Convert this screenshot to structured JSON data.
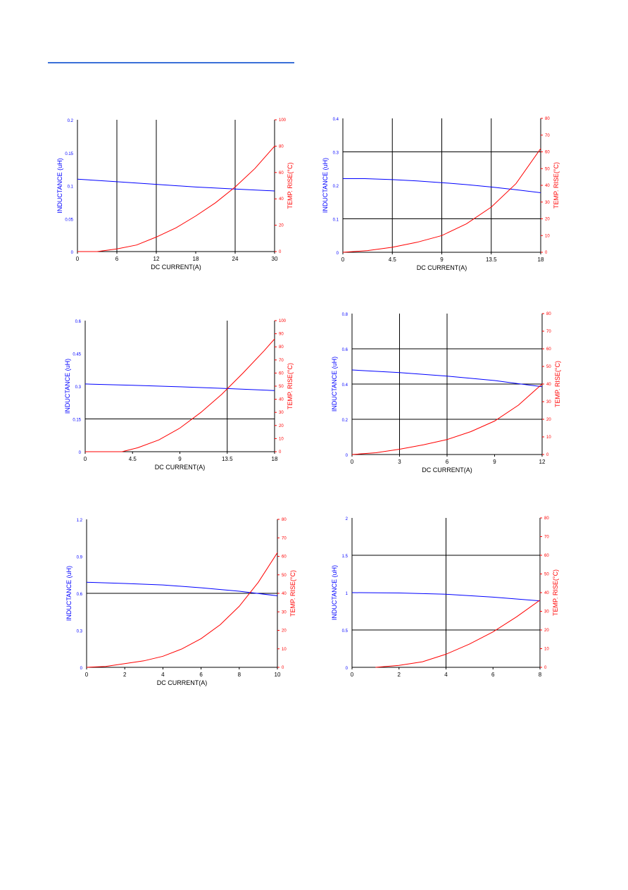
{
  "colors": {
    "header_rule": "#3a6fd8",
    "inductance": "#0000ff",
    "temp": "#ff0000",
    "grid": "#000000",
    "text": "#000000"
  },
  "chart_data": [
    {
      "type": "line",
      "xlabel": "DC CURRENT(A)",
      "ylabel_left": "INDUCTANCE (uH)",
      "ylabel_right": "TEMP. RISE(°C)",
      "x_ticks": [
        0,
        6,
        12,
        18,
        24,
        30
      ],
      "x_tick_labels": [
        "0",
        "6",
        "12",
        "18",
        "24",
        "30"
      ],
      "xlim": [
        0,
        30
      ],
      "y_left_ticks": [
        0,
        0.05,
        0.1,
        0.15,
        0.2
      ],
      "y_left_tick_labels": [
        "0",
        "0.05",
        "0.1",
        "0.15",
        "0.2"
      ],
      "y_left_lim": [
        0,
        0.2
      ],
      "y_right_ticks": [
        0,
        20,
        40,
        60,
        80,
        100
      ],
      "y_right_tick_labels": [
        "0",
        "20",
        "40",
        "60",
        "80",
        "100"
      ],
      "y_right_lim": [
        0,
        100
      ],
      "grid_x": [
        6,
        12,
        24
      ],
      "grid_y": [],
      "series": [
        {
          "axis": "left",
          "x": [
            0,
            6,
            12,
            18,
            24,
            30
          ],
          "y": [
            0.11,
            0.106,
            0.102,
            0.098,
            0.095,
            0.092
          ]
        },
        {
          "axis": "right",
          "x": [
            0,
            3,
            6,
            9,
            12,
            15,
            18,
            21,
            24,
            27,
            30
          ],
          "y": [
            0,
            0,
            2,
            5,
            11,
            18,
            27,
            37,
            49,
            63,
            80
          ]
        }
      ]
    },
    {
      "type": "line",
      "xlabel": "DC CURRENT(A)",
      "ylabel_left": "INDUCTANCE (uH)",
      "ylabel_right": "TEMP. RISE(°C)",
      "x_ticks": [
        0,
        4.5,
        9,
        13.5,
        18
      ],
      "x_tick_labels": [
        "0",
        "4.5",
        "9",
        "13.5",
        "18"
      ],
      "xlim": [
        0,
        18
      ],
      "y_left_ticks": [
        0,
        0.1,
        0.2,
        0.3,
        0.4
      ],
      "y_left_tick_labels": [
        "0",
        "0.1",
        "0.2",
        "0.3",
        "0.4"
      ],
      "y_left_lim": [
        0,
        0.4
      ],
      "y_right_ticks": [
        0,
        10,
        20,
        30,
        40,
        50,
        60,
        70,
        80
      ],
      "y_right_tick_labels": [
        "0",
        "10",
        "20",
        "30",
        "40",
        "50",
        "60",
        "70",
        "80"
      ],
      "y_right_lim": [
        0,
        80
      ],
      "grid_x": [
        4.5,
        9,
        13.5
      ],
      "grid_y": [
        0.1,
        0.3
      ],
      "series": [
        {
          "axis": "left",
          "x": [
            0,
            2,
            4.5,
            6.75,
            9,
            11.25,
            13.5,
            15.75,
            18
          ],
          "y": [
            0.22,
            0.22,
            0.217,
            0.213,
            0.208,
            0.202,
            0.195,
            0.187,
            0.178
          ]
        },
        {
          "axis": "right",
          "x": [
            0,
            2.25,
            4.5,
            6.75,
            9,
            11.25,
            13.5,
            15.75,
            18
          ],
          "y": [
            0,
            1,
            3,
            6,
            10,
            17,
            27,
            41,
            62
          ]
        }
      ]
    },
    {
      "type": "line",
      "xlabel": "DC CURRENT(A)",
      "ylabel_left": "INDUCTANCE (uH)",
      "ylabel_right": "TEMP. RISE(°C)",
      "x_ticks": [
        0,
        4.5,
        9,
        13.5,
        18
      ],
      "x_tick_labels": [
        "0",
        "4.5",
        "9",
        "13.5",
        "18"
      ],
      "xlim": [
        0,
        18
      ],
      "y_left_ticks": [
        0,
        0.15,
        0.3,
        0.45,
        0.6
      ],
      "y_left_tick_labels": [
        "0",
        "0.15",
        "0.3",
        "0.45",
        "0.6"
      ],
      "y_left_lim": [
        0,
        0.6
      ],
      "y_right_ticks": [
        0,
        10,
        20,
        30,
        40,
        50,
        60,
        70,
        80,
        90,
        100
      ],
      "y_right_tick_labels": [
        "0",
        "10",
        "20",
        "30",
        "40",
        "50",
        "60",
        "70",
        "80",
        "90",
        "100"
      ],
      "y_right_lim": [
        0,
        100
      ],
      "grid_x": [
        13.5
      ],
      "grid_y": [
        0.15
      ],
      "series": [
        {
          "axis": "left",
          "x": [
            0,
            4.5,
            9,
            13.5,
            18
          ],
          "y": [
            0.31,
            0.304,
            0.297,
            0.289,
            0.28
          ]
        },
        {
          "axis": "right",
          "x": [
            0,
            3.5,
            5,
            7,
            9,
            11,
            13,
            15,
            17,
            18
          ],
          "y": [
            0,
            0,
            3,
            9,
            18,
            30,
            44,
            60,
            77,
            86
          ]
        }
      ]
    },
    {
      "type": "line",
      "xlabel": "DC CURRENT(A)",
      "ylabel_left": "INDUCTANCE (uH)",
      "ylabel_right": "TEMP. RISE(°C)",
      "x_ticks": [
        0,
        3,
        6,
        9,
        12
      ],
      "x_tick_labels": [
        "0",
        "3",
        "6",
        "9",
        "12"
      ],
      "xlim": [
        0,
        12
      ],
      "y_left_ticks": [
        0,
        0.2,
        0.4,
        0.6,
        0.8
      ],
      "y_left_tick_labels": [
        "0",
        "0.2",
        "0.4",
        "0.6",
        "0.8"
      ],
      "y_left_lim": [
        0,
        0.8
      ],
      "y_right_ticks": [
        0,
        10,
        20,
        30,
        40,
        50,
        60,
        70,
        80
      ],
      "y_right_tick_labels": [
        "0",
        "10",
        "20",
        "30",
        "40",
        "50",
        "60",
        "70",
        "80"
      ],
      "y_right_lim": [
        0,
        80
      ],
      "grid_x": [
        3,
        6
      ],
      "grid_y": [
        0.2,
        0.4,
        0.6
      ],
      "series": [
        {
          "axis": "left",
          "x": [
            0,
            3,
            6,
            9,
            10.5,
            12
          ],
          "y": [
            0.48,
            0.465,
            0.445,
            0.42,
            0.402,
            0.385
          ]
        },
        {
          "axis": "right",
          "x": [
            0,
            1.5,
            3,
            4.5,
            6,
            7.5,
            9,
            10.5,
            12
          ],
          "y": [
            0,
            1,
            3,
            5.5,
            8.5,
            13,
            19,
            28,
            40
          ]
        }
      ]
    },
    {
      "type": "line",
      "xlabel": "DC CURRENT(A)",
      "ylabel_left": "INDUCTANCE (uH)",
      "ylabel_right": "TEMP. RISE(°C)",
      "x_ticks": [
        0,
        2,
        4,
        6,
        8,
        10
      ],
      "x_tick_labels": [
        "0",
        "2",
        "4",
        "6",
        "8",
        "10"
      ],
      "xlim": [
        0,
        10
      ],
      "y_left_ticks": [
        0,
        0.3,
        0.6,
        0.9,
        1.2
      ],
      "y_left_tick_labels": [
        "0",
        "0.3",
        "0.6",
        "0.9",
        "1.2"
      ],
      "y_left_lim": [
        0,
        1.2
      ],
      "y_right_ticks": [
        0,
        10,
        20,
        30,
        40,
        50,
        60,
        70,
        80
      ],
      "y_right_tick_labels": [
        "0",
        "10",
        "20",
        "30",
        "40",
        "50",
        "60",
        "70",
        "80"
      ],
      "y_right_lim": [
        0,
        80
      ],
      "grid_x": [],
      "grid_y": [
        0.6
      ],
      "series": [
        {
          "axis": "left",
          "x": [
            0,
            2,
            4,
            6,
            8,
            10
          ],
          "y": [
            0.69,
            0.68,
            0.668,
            0.645,
            0.617,
            0.58
          ]
        },
        {
          "axis": "right",
          "x": [
            0,
            1,
            2,
            3,
            4,
            5,
            6,
            7,
            8,
            9,
            10
          ],
          "y": [
            0,
            0.5,
            2,
            3.5,
            6,
            10,
            15.5,
            23,
            33,
            46,
            62
          ]
        }
      ]
    },
    {
      "type": "line",
      "xlabel": "",
      "ylabel_left": "INDUCTANCE (uH)",
      "ylabel_right": "TEMP. RISE(°C)",
      "x_ticks": [
        0,
        2,
        4,
        6,
        8
      ],
      "x_tick_labels": [
        "0",
        "2",
        "4",
        "6",
        "8"
      ],
      "xlim": [
        0,
        8
      ],
      "y_left_ticks": [
        0,
        0.5,
        1,
        1.5,
        2
      ],
      "y_left_tick_labels": [
        "0",
        "0.5",
        "1",
        "1.5",
        "2"
      ],
      "y_left_lim": [
        0,
        2
      ],
      "y_right_ticks": [
        0,
        10,
        20,
        30,
        40,
        50,
        60,
        70,
        80
      ],
      "y_right_tick_labels": [
        "0",
        "10",
        "20",
        "30",
        "40",
        "50",
        "60",
        "70",
        "80"
      ],
      "y_right_lim": [
        0,
        80
      ],
      "grid_x": [
        4
      ],
      "grid_y": [
        0.5,
        1.5
      ],
      "series": [
        {
          "axis": "left",
          "x": [
            0,
            2,
            4,
            6,
            8
          ],
          "y": [
            1.0,
            0.995,
            0.978,
            0.94,
            0.89
          ]
        },
        {
          "axis": "right",
          "x": [
            1,
            2,
            3,
            4,
            5,
            6,
            7,
            8
          ],
          "y": [
            0,
            1,
            3,
            7,
            12.5,
            19,
            27,
            36
          ]
        }
      ]
    }
  ]
}
